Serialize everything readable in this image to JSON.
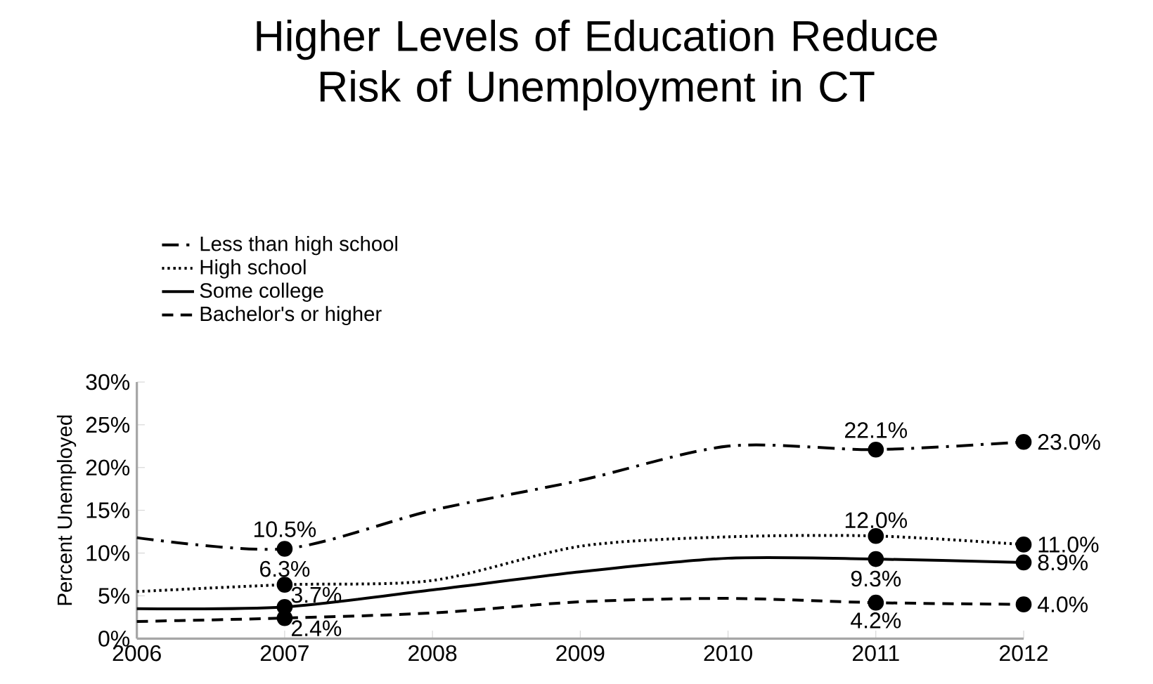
{
  "chart_data": {
    "type": "line",
    "title": "Higher Levels of Education Reduce Risk of Unemployment in CT",
    "ylabel": "Percent Unemployed",
    "x": [
      2006,
      2007,
      2008,
      2009,
      2010,
      2011,
      2012
    ],
    "xlim": [
      2006,
      2012
    ],
    "xticks": [
      2006,
      2007,
      2008,
      2009,
      2010,
      2011,
      2012
    ],
    "ylim": [
      0,
      30
    ],
    "yticks": [
      {
        "value": 0,
        "label": "0%"
      },
      {
        "value": 5,
        "label": "5%"
      },
      {
        "value": 10,
        "label": "10%"
      },
      {
        "value": 15,
        "label": "15%"
      },
      {
        "value": 20,
        "label": "20%"
      },
      {
        "value": 25,
        "label": "25%"
      },
      {
        "value": 30,
        "label": "30%"
      }
    ],
    "grid": false,
    "legend": "top left",
    "series": [
      {
        "name": "Less than high school",
        "color": "#000000",
        "line_style": "dashdot",
        "values": [
          11.8,
          10.5,
          15.0,
          18.5,
          22.5,
          22.1,
          23.0
        ],
        "value_labels": [
          null,
          "10.5%",
          null,
          null,
          null,
          "22.1%",
          "23.0%"
        ]
      },
      {
        "name": "High school",
        "color": "#000000",
        "line_style": "dotted",
        "values": [
          5.5,
          6.3,
          6.8,
          10.8,
          11.9,
          12.0,
          11.0
        ],
        "value_labels": [
          null,
          "6.3%",
          null,
          null,
          null,
          "12.0%",
          "11.0%"
        ]
      },
      {
        "name": "Some college",
        "color": "#000000",
        "line_style": "solid",
        "values": [
          3.5,
          3.7,
          5.7,
          7.8,
          9.4,
          9.3,
          8.9
        ],
        "value_labels": [
          null,
          "3.7%",
          null,
          null,
          null,
          "9.3%",
          "8.9%"
        ]
      },
      {
        "name": "Bachelor's or higher",
        "color": "#000000",
        "line_style": "dashed",
        "values": [
          2.0,
          2.4,
          3.0,
          4.3,
          4.7,
          4.2,
          4.0
        ],
        "value_labels": [
          null,
          "2.4%",
          null,
          null,
          null,
          "4.2%",
          "4.0%"
        ]
      }
    ]
  }
}
